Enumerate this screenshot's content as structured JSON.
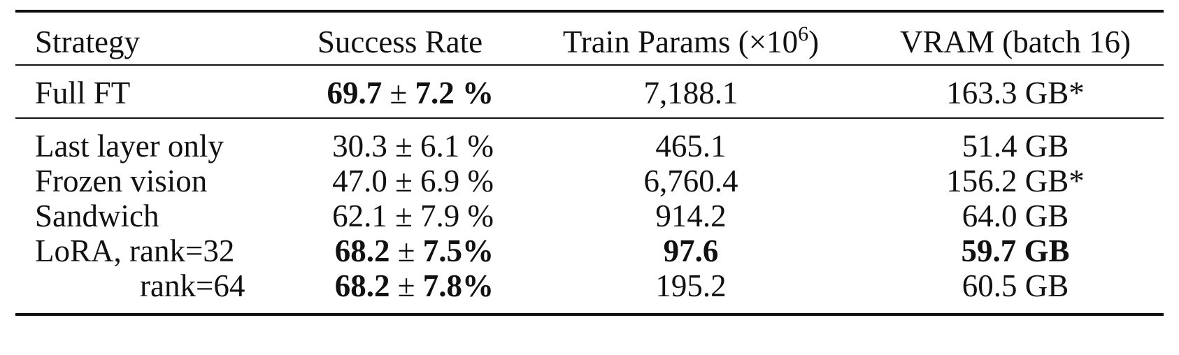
{
  "table": {
    "headers": {
      "strategy": "Strategy",
      "success": "Success Rate",
      "params_prefix": "Train Params (×10",
      "params_exp": "6",
      "params_suffix": ")",
      "vram": "VRAM (batch 16)"
    },
    "rows": [
      {
        "strategy": "Full FT",
        "success_val": "69.7",
        "pm": " ± ",
        "success_err": "7.2 %",
        "params": "7,188.1",
        "vram": "163.3 GB*"
      },
      {
        "strategy": "Last layer only",
        "success": "30.3 ± 6.1 %",
        "params": "465.1",
        "vram": "51.4 GB"
      },
      {
        "strategy": "Frozen vision",
        "success": "47.0 ± 6.9 %",
        "params": "6,760.4",
        "vram": "156.2 GB*"
      },
      {
        "strategy": "Sandwich",
        "success": "62.1 ± 7.9 %",
        "params": "914.2",
        "vram": "64.0 GB"
      },
      {
        "strategy": "LoRA, rank=32",
        "success_val": "68.2",
        "pm": " ± ",
        "success_err": "7.5%",
        "params": "97.6",
        "vram": "59.7 GB"
      },
      {
        "strategy": "rank=64",
        "success_val": "68.2",
        "pm": " ± ",
        "success_err": "7.8%",
        "params": "195.2",
        "vram": "60.5 GB"
      }
    ]
  }
}
